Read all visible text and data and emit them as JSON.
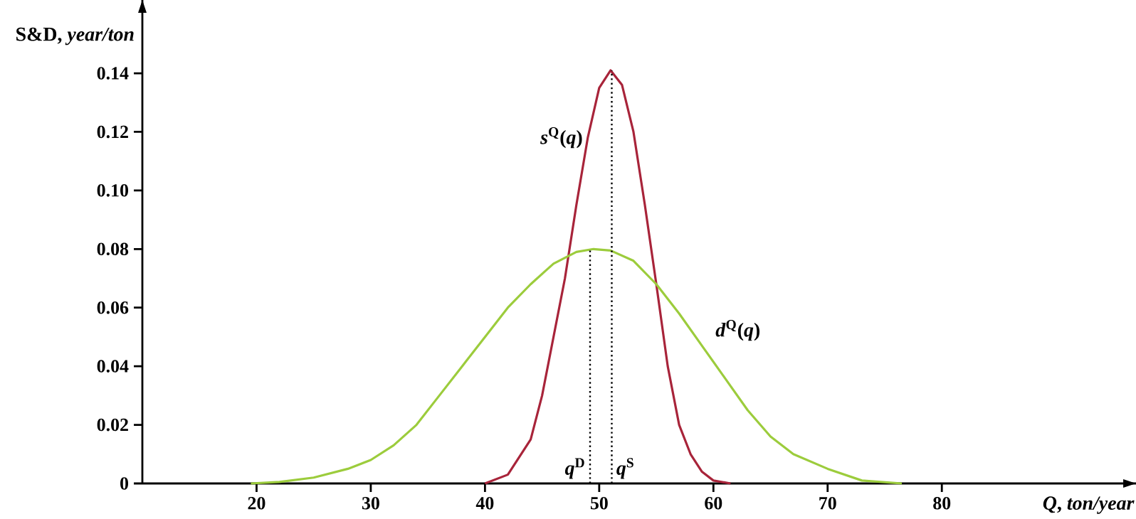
{
  "chart_data": {
    "type": "line",
    "xlabel": "*Q*, *ton/year*",
    "ylabel": "S&D, *year/ton*",
    "xlim": [
      10,
      97
    ],
    "ylim": [
      0,
      0.165
    ],
    "xticks": [
      20,
      30,
      40,
      50,
      60,
      70,
      80
    ],
    "yticks": [
      0,
      0.02,
      0.04,
      0.06,
      0.08,
      {
        "value": 0.1,
        "label": "0.10"
      },
      0.12,
      0.14
    ],
    "grid": false,
    "marker": "none",
    "series": [
      {
        "name": "*s*$^{Q}$(*q*)",
        "color": "#a8243a",
        "line_style": "solid",
        "x": [
          40,
          42,
          44,
          45,
          46,
          47,
          48,
          49,
          50,
          51,
          52,
          53,
          54,
          55,
          56,
          57,
          58,
          59,
          60,
          61.5
        ],
        "values": [
          0,
          0.003,
          0.015,
          0.03,
          0.05,
          0.07,
          0.095,
          0.118,
          0.135,
          0.141,
          0.136,
          0.12,
          0.095,
          0.068,
          0.04,
          0.02,
          0.01,
          0.004,
          0.001,
          0
        ]
      },
      {
        "name": "*d*$^{Q}$(*q*)",
        "color": "#9ccc3c",
        "line_style": "solid",
        "x": [
          19.5,
          22,
          25,
          28,
          30,
          32,
          34,
          36,
          38,
          40,
          42,
          44,
          46,
          48,
          49.5,
          51,
          53,
          55,
          57,
          59,
          61,
          63,
          65,
          67,
          70,
          73,
          76.5
        ],
        "values": [
          0,
          0.0005,
          0.002,
          0.005,
          0.008,
          0.013,
          0.02,
          0.03,
          0.04,
          0.05,
          0.06,
          0.068,
          0.075,
          0.079,
          0.08,
          0.0795,
          0.076,
          0.068,
          0.058,
          0.047,
          0.036,
          0.025,
          0.016,
          0.01,
          0.005,
          0.001,
          0
        ]
      },
      {
        "color": "#000000",
        "line_style": "dotted",
        "x": [
          49.2,
          49.2
        ],
        "values": [
          0,
          0.08
        ]
      },
      {
        "color": "#000000",
        "line_style": "dotted",
        "x": [
          51.1,
          51.1
        ],
        "values": [
          0,
          0.141
        ]
      }
    ],
    "annotations": [
      {
        "text": "*q*$^{D}$",
        "x": 49.2,
        "y": 0
      },
      {
        "text": "*q*$^{S}$",
        "x": 51.1,
        "y": 0
      }
    ]
  }
}
